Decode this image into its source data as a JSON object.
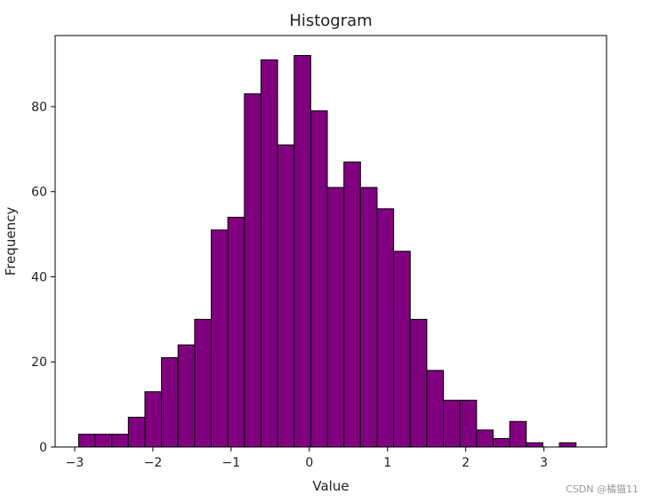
{
  "chart_data": {
    "type": "bar",
    "title": "Histogram",
    "xlabel": "Value",
    "ylabel": "Frequency",
    "xlim": [
      -3.25,
      3.8
    ],
    "ylim": [
      0,
      96.7
    ],
    "xticks": [
      -3,
      -2,
      -1,
      0,
      1,
      2,
      3
    ],
    "xtick_labels": [
      "−3",
      "−2",
      "−1",
      "0",
      "1",
      "2",
      "3"
    ],
    "yticks": [
      0,
      20,
      40,
      60,
      80
    ],
    "ytick_labels": [
      "0",
      "20",
      "40",
      "60",
      "80"
    ],
    "bin_edges": [
      -2.95,
      -2.738,
      -2.526,
      -2.314,
      -2.102,
      -1.89,
      -1.678,
      -1.466,
      -1.254,
      -1.042,
      -0.83,
      -0.618,
      -0.406,
      -0.194,
      0.018,
      0.23,
      0.442,
      0.654,
      0.866,
      1.078,
      1.29,
      1.502,
      1.714,
      1.926,
      2.138,
      2.35,
      2.562,
      2.774,
      2.986,
      3.198,
      3.41
    ],
    "values": [
      3,
      3,
      3,
      7,
      13,
      21,
      24,
      30,
      51,
      54,
      83,
      91,
      71,
      92,
      79,
      61,
      67,
      61,
      56,
      46,
      30,
      18,
      11,
      11,
      4,
      2,
      6,
      1,
      0,
      1
    ],
    "grid": false,
    "bar_color": "#800080",
    "edge_color": "#000000"
  },
  "watermark": "CSDN @橘猫11"
}
